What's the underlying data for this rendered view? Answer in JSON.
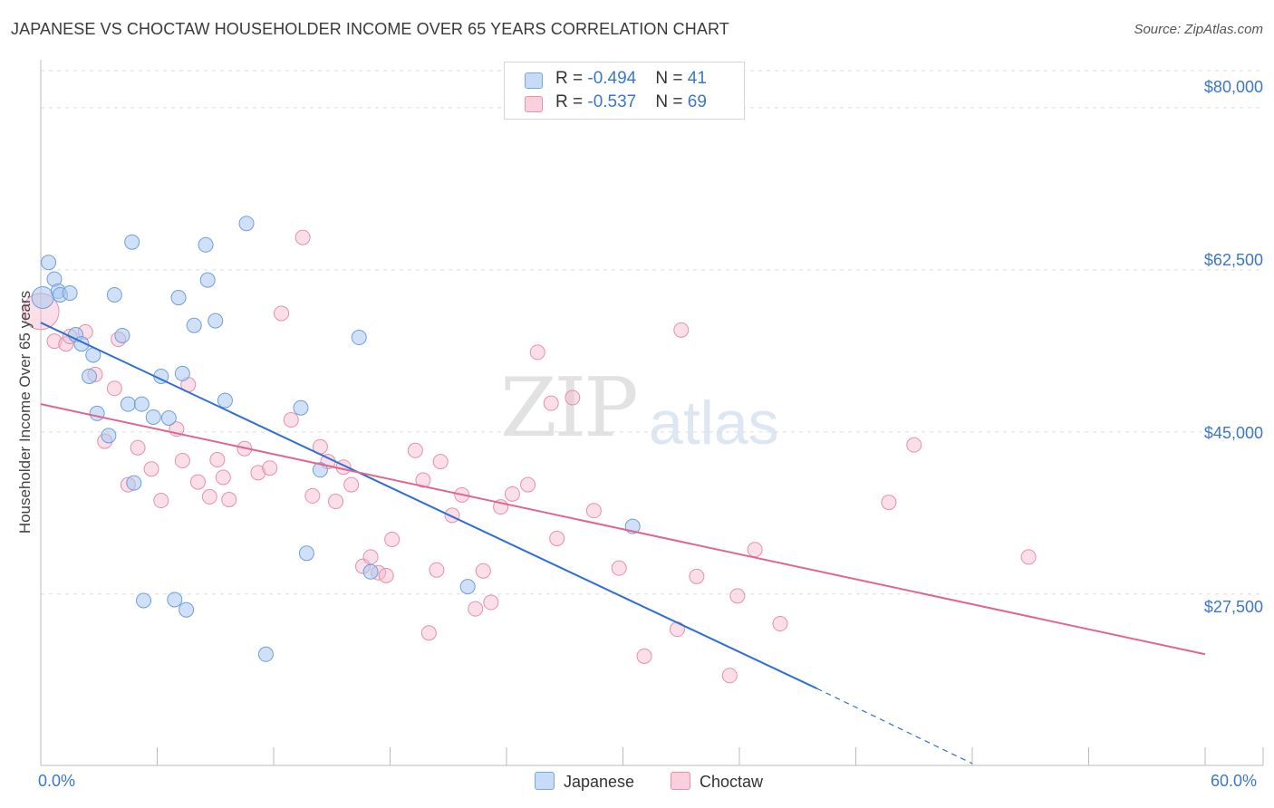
{
  "title": "JAPANESE VS CHOCTAW HOUSEHOLDER INCOME OVER 65 YEARS CORRELATION CHART",
  "source": "Source: ZipAtlas.com",
  "watermark": {
    "zip": "ZIP",
    "atlas": "atlas"
  },
  "legend": {
    "rows": [
      {
        "r_label": "R = ",
        "r_value": "-0.494",
        "n_label": "N = ",
        "n_value": "41",
        "color": "#a9c8f0"
      },
      {
        "r_label": "R = ",
        "r_value": "-0.537",
        "n_label": "N = ",
        "n_value": "69",
        "color": "#f5b8cb"
      }
    ]
  },
  "bottom_legend": {
    "japanese": "Japanese",
    "choctaw": "Choctaw"
  },
  "colors": {
    "japanese_fill": "#a9c8f0",
    "japanese_line": "#2f6fd3",
    "choctaw_fill": "#f5b8cb",
    "choctaw_line": "#e06690",
    "tick_text": "#3b77c9"
  },
  "chart_data": {
    "type": "scatter",
    "title": "JAPANESE VS CHOCTAW HOUSEHOLDER INCOME OVER 65 YEARS CORRELATION CHART",
    "xlabel": "",
    "ylabel": "Householder Income Over 65 years",
    "xlim": [
      0,
      60
    ],
    "ylim": [
      9000,
      84000
    ],
    "x_tick_labels": [
      "0.0%",
      "60.0%"
    ],
    "y_ticks": [
      27500,
      45000,
      62500,
      80000
    ],
    "y_tick_labels": [
      "$27,500",
      "$45,000",
      "$62,500",
      "$80,000"
    ],
    "grid": true,
    "series": [
      {
        "name": "Japanese",
        "points": [
          [
            0.1,
            59.5
          ],
          [
            0.4,
            63.3
          ],
          [
            0.7,
            61.5
          ],
          [
            0.9,
            60.2
          ],
          [
            1.0,
            59.8
          ],
          [
            1.5,
            60.0
          ],
          [
            1.8,
            55.5
          ],
          [
            2.1,
            54.5
          ],
          [
            2.5,
            51.0
          ],
          [
            2.7,
            53.3
          ],
          [
            2.9,
            47.0
          ],
          [
            3.5,
            44.6
          ],
          [
            3.8,
            59.8
          ],
          [
            4.2,
            55.4
          ],
          [
            4.5,
            48.0
          ],
          [
            4.7,
            65.5
          ],
          [
            4.8,
            39.5
          ],
          [
            5.2,
            48.0
          ],
          [
            5.3,
            26.8
          ],
          [
            5.8,
            46.6
          ],
          [
            6.2,
            51.0
          ],
          [
            6.6,
            46.5
          ],
          [
            6.9,
            26.9
          ],
          [
            7.1,
            59.5
          ],
          [
            7.3,
            51.3
          ],
          [
            7.5,
            25.8
          ],
          [
            7.9,
            56.5
          ],
          [
            8.5,
            65.2
          ],
          [
            8.6,
            61.4
          ],
          [
            9.0,
            57.0
          ],
          [
            9.5,
            48.4
          ],
          [
            10.6,
            67.5
          ],
          [
            11.6,
            21.0
          ],
          [
            13.4,
            47.6
          ],
          [
            13.7,
            31.9
          ],
          [
            14.4,
            40.9
          ],
          [
            16.4,
            55.2
          ],
          [
            17.0,
            29.9
          ],
          [
            22.0,
            28.3
          ],
          [
            30.5,
            34.8
          ]
        ],
        "trend": {
          "x0": 0,
          "y0": 56.8,
          "x1": 40,
          "y1": 17.3,
          "dashed_to_x": 48,
          "dashed_to_y": 9.2
        }
      },
      {
        "name": "Choctaw",
        "points": [
          [
            0.0,
            58.0
          ],
          [
            0.7,
            54.8
          ],
          [
            1.3,
            54.5
          ],
          [
            1.5,
            55.3
          ],
          [
            2.3,
            55.8
          ],
          [
            2.8,
            51.2
          ],
          [
            3.3,
            44.0
          ],
          [
            3.8,
            49.7
          ],
          [
            4.0,
            55.0
          ],
          [
            4.5,
            39.3
          ],
          [
            5.0,
            43.3
          ],
          [
            5.7,
            41.0
          ],
          [
            6.2,
            37.6
          ],
          [
            7.0,
            45.3
          ],
          [
            7.3,
            41.9
          ],
          [
            7.6,
            50.1
          ],
          [
            8.1,
            39.6
          ],
          [
            8.7,
            38.0
          ],
          [
            9.1,
            42.0
          ],
          [
            9.4,
            40.1
          ],
          [
            9.7,
            37.7
          ],
          [
            10.5,
            43.2
          ],
          [
            11.2,
            40.6
          ],
          [
            11.8,
            41.1
          ],
          [
            12.4,
            57.8
          ],
          [
            12.9,
            46.3
          ],
          [
            13.5,
            66.0
          ],
          [
            14.0,
            38.1
          ],
          [
            14.4,
            43.4
          ],
          [
            14.8,
            41.8
          ],
          [
            15.2,
            37.5
          ],
          [
            15.6,
            41.2
          ],
          [
            16.0,
            39.3
          ],
          [
            16.6,
            30.5
          ],
          [
            17.0,
            31.5
          ],
          [
            17.4,
            29.8
          ],
          [
            17.8,
            29.5
          ],
          [
            18.1,
            33.4
          ],
          [
            19.3,
            43.0
          ],
          [
            19.7,
            39.8
          ],
          [
            20.0,
            23.3
          ],
          [
            20.4,
            30.1
          ],
          [
            20.6,
            41.8
          ],
          [
            21.2,
            36.0
          ],
          [
            21.7,
            38.2
          ],
          [
            22.4,
            25.9
          ],
          [
            22.8,
            30.0
          ],
          [
            23.2,
            26.6
          ],
          [
            23.7,
            36.9
          ],
          [
            24.3,
            38.3
          ],
          [
            25.1,
            39.3
          ],
          [
            25.6,
            53.6
          ],
          [
            26.3,
            48.1
          ],
          [
            26.6,
            33.5
          ],
          [
            27.4,
            48.7
          ],
          [
            28.5,
            36.5
          ],
          [
            29.8,
            30.3
          ],
          [
            31.1,
            20.8
          ],
          [
            32.8,
            23.7
          ],
          [
            33.0,
            56.0
          ],
          [
            33.8,
            29.4
          ],
          [
            35.5,
            18.7
          ],
          [
            35.9,
            27.3
          ],
          [
            36.8,
            32.3
          ],
          [
            38.1,
            24.3
          ],
          [
            43.7,
            37.4
          ],
          [
            45.0,
            43.6
          ],
          [
            50.9,
            31.5
          ]
        ],
        "trend": {
          "x0": 0,
          "y0": 48.0,
          "x1": 60,
          "y1": 21.0
        }
      }
    ],
    "note": "points are [x percent, y thousands of dollars]"
  }
}
